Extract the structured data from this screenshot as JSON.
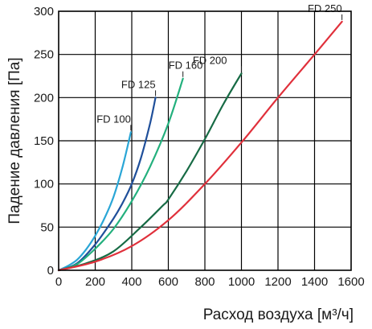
{
  "chart_data": {
    "type": "line",
    "xlabel": "Расход воздуха [м³/ч]",
    "ylabel": "Падение давления [Па]",
    "xlim": [
      0,
      1600
    ],
    "ylim": [
      0,
      300
    ],
    "x_ticks": [
      "0",
      "200",
      "400",
      "600",
      "800",
      "1000",
      "1200",
      "1400",
      "1600"
    ],
    "y_ticks": [
      "0",
      "50",
      "100",
      "150",
      "200",
      "250",
      "300"
    ],
    "grid": true,
    "series": [
      {
        "name": "FD 100",
        "color": "#2aa6d6",
        "points": [
          [
            0,
            0
          ],
          [
            50,
            5
          ],
          [
            100,
            12
          ],
          [
            150,
            24
          ],
          [
            200,
            40
          ],
          [
            250,
            60
          ],
          [
            300,
            85
          ],
          [
            350,
            120
          ],
          [
            395,
            160
          ]
        ]
      },
      {
        "name": "FD 125",
        "color": "#1f4f9a",
        "points": [
          [
            0,
            0
          ],
          [
            100,
            8
          ],
          [
            200,
            30
          ],
          [
            300,
            60
          ],
          [
            350,
            78
          ],
          [
            400,
            100
          ],
          [
            450,
            130
          ],
          [
            500,
            170
          ],
          [
            530,
            200
          ]
        ]
      },
      {
        "name": "FD 160",
        "color": "#23b07d",
        "points": [
          [
            0,
            0
          ],
          [
            100,
            7
          ],
          [
            200,
            25
          ],
          [
            300,
            48
          ],
          [
            400,
            80
          ],
          [
            500,
            120
          ],
          [
            600,
            170
          ],
          [
            680,
            222
          ]
        ]
      },
      {
        "name": "FD 200",
        "color": "#176b45",
        "points": [
          [
            0,
            0
          ],
          [
            150,
            8
          ],
          [
            300,
            22
          ],
          [
            450,
            50
          ],
          [
            570,
            75
          ],
          [
            600,
            82
          ],
          [
            700,
            115
          ],
          [
            800,
            152
          ],
          [
            900,
            192
          ],
          [
            1000,
            228
          ]
        ]
      },
      {
        "name": "FD 250",
        "color": "#e0303b",
        "points": [
          [
            0,
            0
          ],
          [
            200,
            10
          ],
          [
            400,
            28
          ],
          [
            600,
            58
          ],
          [
            800,
            100
          ],
          [
            1000,
            148
          ],
          [
            1200,
            200
          ],
          [
            1400,
            250
          ],
          [
            1550,
            288
          ]
        ]
      }
    ]
  }
}
